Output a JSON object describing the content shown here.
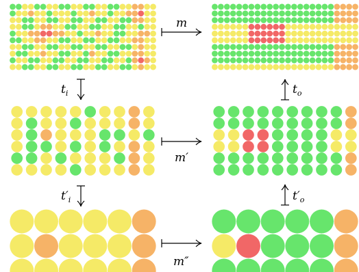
{
  "colors": {
    "red": "#f05a5a",
    "orange": "#f5ad5a",
    "yellow": "#f4e85a",
    "yellow_green": "#d7ef5a",
    "green": "#5ae35f",
    "arrow": "#000000"
  },
  "grids": [
    {
      "id": "input-fine",
      "rows": [
        "GGYYGGYYGGYYGGYYGGYYOOYY",
        "GYYOYYGYYYGYYOYYGYYOORYY",
        "YYGGYYGGYYGGYYGGYYGGOOYY",
        "YYGGYOOYYGGYYGGYYGGYYGYY",
        "GYYOORROOYYGYYOYYGGYYOOY",
        "GGYYOOYYGGYYGGYYGGYYOOYY",
        "YYGGYYGGYYGGYYGGYYGGYOYY",
        "YGGYYOYYGGYYGOYYGGYYOOYY",
        "GYYGGYYGGYYGGYYGGYYGOROY",
        "YYGGYYGGYYGGYYGGYYGGYOYY"
      ]
    },
    {
      "id": "output-fine",
      "rows": [
        "GGGGGGGGGGGGGGGGGGGGOOOO",
        "GGGGGGGGGGGGGGGGGGGGOOOO",
        "GGGGGGGGGGGGGGGGGGGGOOOO",
        "YYYYYYRRRRRRYYYYYYYYYYYY",
        "YYYYYYRRRRRRYYYYYYYYYYYY",
        "YYYYYYRRRRRRYYYYYYYYYYYY",
        "GGGGGGGGGGGGGGGGGGGGOOOO",
        "GGGGGGGGGGGGGGGGGGGGOOOO",
        "GGGGGGGGGGGGGGGGGGGGOOOO",
        "YYYYYYYYYYYYYYYYYYYYOOOO"
      ]
    },
    {
      "id": "input-mid",
      "rows": [
        "YYYYYGYYOY",
        "YGYYGYYYOY",
        "YGOYYYGGYG",
        "YGGYGYGYOY",
        "GGYGYYYGOY",
        "YYYYGYYYOY"
      ]
    },
    {
      "id": "output-mid",
      "rows": [
        "GGGGGGGGGO",
        "GGGGGGGGGO",
        "YYRRGGGGYY",
        "YYRRGGGGYY",
        "GGGGGGGGGO",
        "GGGGGGGGGO"
      ]
    },
    {
      "id": "input-coarse",
      "rows": [
        "YYYYYO",
        "YOYYYO",
        "YYYYYO"
      ]
    },
    {
      "id": "output-coarse",
      "rows": [
        "GGGGGO",
        "YRGGGO",
        "GGGGGO"
      ]
    }
  ],
  "labels": {
    "m": "m",
    "m_prime": "m′",
    "m_double_prime": "m″",
    "t_i": "t",
    "t_i_sub": "i",
    "t_i_prime": "t′",
    "t_i_prime_sub": "i",
    "t_o": "t",
    "t_o_sub": "o",
    "t_o_prime": "t′",
    "t_o_prime_sub": "o"
  }
}
